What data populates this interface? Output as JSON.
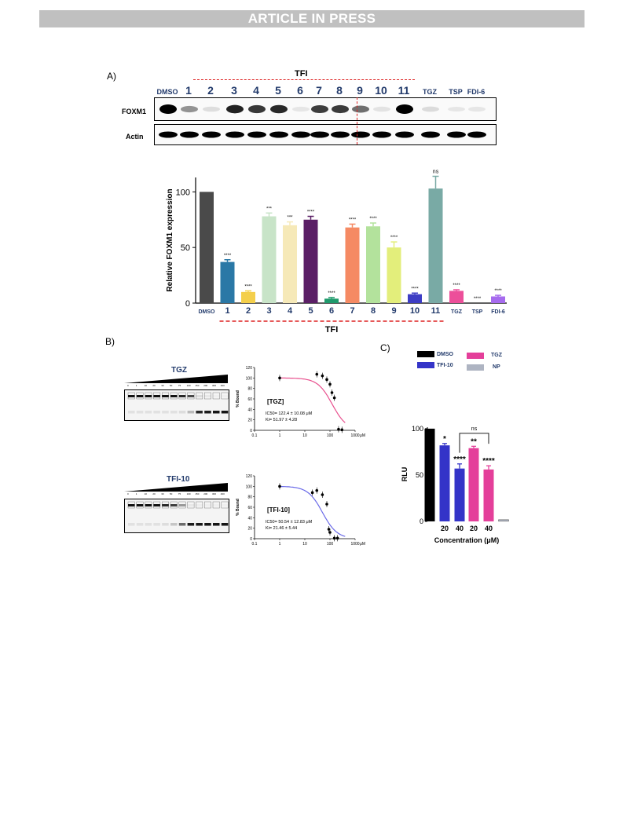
{
  "banner": "ARTICLE IN PRESS",
  "panelA": {
    "label": "A)",
    "tfi_label": "TFI",
    "lanes": [
      "DMSO",
      "1",
      "2",
      "3",
      "4",
      "5",
      "6",
      "7",
      "8",
      "9",
      "10",
      "11",
      "TGZ",
      "TSP",
      "FDI-6"
    ],
    "row_foxm1": "FOXM1",
    "row_actin": "Actin"
  },
  "chart_data": [
    {
      "type": "bar",
      "panel": "A",
      "ylabel": "Relative FOXM1 expression",
      "xlabel": "TFI",
      "ylim": [
        0,
        120
      ],
      "yticks": [
        0,
        50,
        100
      ],
      "categories": [
        "DMSO",
        "1",
        "2",
        "3",
        "4",
        "5",
        "6",
        "7",
        "8",
        "9",
        "10",
        "11",
        "TGZ",
        "TSP",
        "FDI-6"
      ],
      "values": [
        100,
        37,
        10,
        78,
        70,
        75,
        4,
        68,
        69,
        50,
        8,
        103,
        11,
        0,
        6
      ],
      "errors": [
        0,
        2,
        1,
        3,
        3,
        3,
        1,
        3,
        3,
        5,
        1,
        11,
        1,
        0,
        1
      ],
      "significance": [
        "",
        "****",
        "****",
        "***",
        "***",
        "****",
        "****",
        "****",
        "****",
        "****",
        "****",
        "ns",
        "****",
        "****",
        "****"
      ],
      "colors": [
        "#4a4a4a",
        "#2a78a6",
        "#f4cf4b",
        "#c8e4c8",
        "#f6e9b8",
        "#5b1f66",
        "#1f9a6c",
        "#f58a63",
        "#b3e29c",
        "#e3ee7b",
        "#3d3dc4",
        "#79aaa5",
        "#ec4f9a",
        "#555555",
        "#a66bee"
      ]
    },
    {
      "type": "scatter",
      "panel": "B-TGZ",
      "ylabel": "% Bound",
      "xunit": "μM",
      "xscale": "log",
      "xlim": [
        0.1,
        1000
      ],
      "ylim": [
        0,
        120
      ],
      "yticks": [
        0,
        20,
        40,
        60,
        80,
        100,
        120
      ],
      "xticks": [
        "0.1",
        "1",
        "10",
        "100",
        "1000"
      ],
      "title": "[TGZ]",
      "annotation": [
        "IC50= 122.4 ± 10.08 μM",
        "Ki= 51.97 ± 4.28"
      ],
      "points": [
        [
          1,
          100
        ],
        [
          30,
          107
        ],
        [
          50,
          104
        ],
        [
          75,
          97
        ],
        [
          100,
          88
        ],
        [
          120,
          72
        ],
        [
          150,
          62
        ],
        [
          220,
          2
        ],
        [
          300,
          1
        ]
      ],
      "fit": {
        "ic50": 122.4,
        "top": 100,
        "bottom": 0,
        "hill": 1.5,
        "color": "#e8508e"
      }
    },
    {
      "type": "scatter",
      "panel": "B-TFI10",
      "ylabel": "% Bound",
      "xunit": "μM",
      "xscale": "log",
      "xlim": [
        0.1,
        1000
      ],
      "ylim": [
        0,
        120
      ],
      "yticks": [
        0,
        20,
        40,
        60,
        80,
        100,
        120
      ],
      "xticks": [
        "0.1",
        "1",
        "10",
        "100",
        "1000"
      ],
      "title": "[TFI-10]",
      "annotation": [
        "IC50= 50.54 ± 12.83 μM",
        "Ki= 21.46 ± 5.44"
      ],
      "points": [
        [
          1,
          100
        ],
        [
          20,
          88
        ],
        [
          30,
          92
        ],
        [
          50,
          84
        ],
        [
          75,
          66
        ],
        [
          90,
          18
        ],
        [
          100,
          12
        ],
        [
          150,
          1
        ],
        [
          200,
          1
        ]
      ],
      "fit": {
        "ic50": 50.54,
        "top": 100,
        "bottom": 0,
        "hill": 1.5,
        "color": "#6a6ae8"
      }
    },
    {
      "type": "bar",
      "panel": "C",
      "ylabel": "RLU",
      "xlabel": "Concentration (μM)",
      "ylim": [
        0,
        105
      ],
      "yticks": [
        0,
        50,
        100
      ],
      "categories": [
        "DMSO",
        "20",
        "40",
        "20",
        "40",
        "NP"
      ],
      "x_tick_labels": [
        "",
        "20",
        "40",
        "20",
        "40",
        ""
      ],
      "series_groups": [
        "DMSO",
        "TFI-10",
        "TFI-10",
        "TGZ",
        "TGZ",
        "NP"
      ],
      "values": [
        100,
        82,
        57,
        79,
        56,
        1
      ],
      "errors": [
        0,
        2,
        5,
        2,
        4,
        1
      ],
      "significance": [
        "",
        "*",
        "****",
        "**",
        "****",
        ""
      ],
      "bracket_label": "ns",
      "colors": [
        "#000000",
        "#3434c8",
        "#3434c8",
        "#e43f9a",
        "#e43f9a",
        "#aeb4c2"
      ]
    }
  ],
  "panelB": {
    "label": "B)",
    "gel1_title": "TGZ",
    "gel2_title": "TFI-10",
    "gel_conc": [
      "0",
      "1",
      "10",
      "20",
      "30",
      "50",
      "75",
      "100",
      "150",
      "200",
      "300",
      "400"
    ]
  },
  "panelC": {
    "label": "C)",
    "legend": [
      {
        "name": "DMSO",
        "color": "#000000"
      },
      {
        "name": "TGZ",
        "color": "#e43f9a"
      },
      {
        "name": "TFI-10",
        "color": "#3434c8"
      },
      {
        "name": "NP",
        "color": "#aeb4c2"
      }
    ]
  }
}
